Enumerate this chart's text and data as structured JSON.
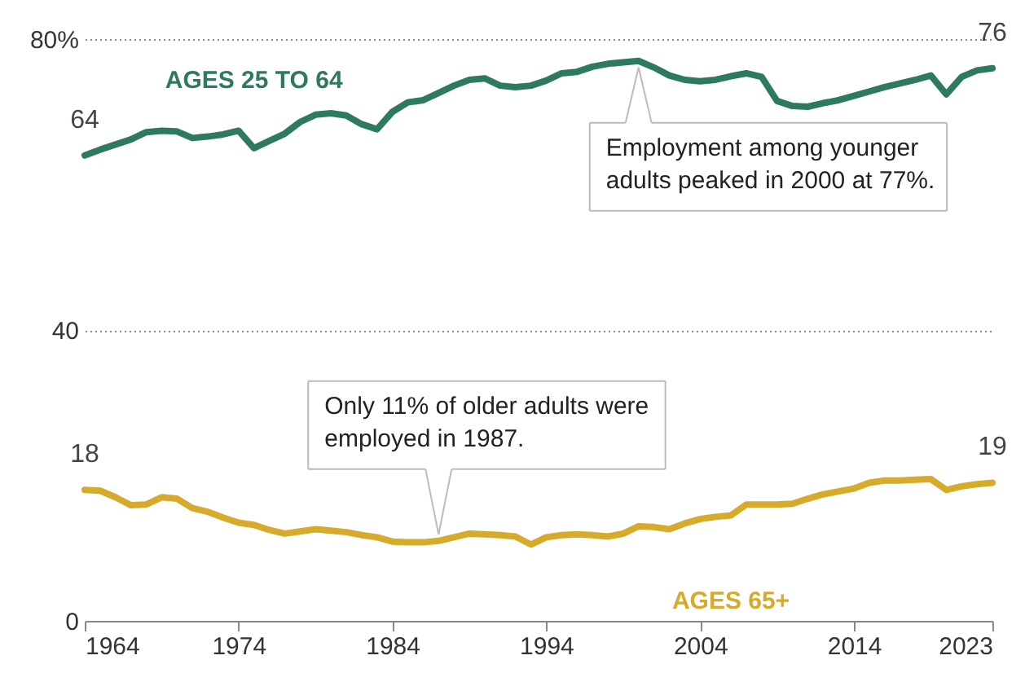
{
  "chart_data": {
    "type": "line",
    "x": [
      1964,
      1965,
      1966,
      1967,
      1968,
      1969,
      1970,
      1971,
      1972,
      1973,
      1974,
      1975,
      1976,
      1977,
      1978,
      1979,
      1980,
      1981,
      1982,
      1983,
      1984,
      1985,
      1986,
      1987,
      1988,
      1989,
      1990,
      1991,
      1992,
      1993,
      1994,
      1995,
      1996,
      1997,
      1998,
      1999,
      2000,
      2001,
      2002,
      2003,
      2004,
      2005,
      2006,
      2007,
      2008,
      2009,
      2010,
      2011,
      2012,
      2013,
      2014,
      2015,
      2016,
      2017,
      2018,
      2019,
      2020,
      2021,
      2022,
      2023
    ],
    "series": [
      {
        "name": "AGES 25 TO 64",
        "color": "#2e7a60",
        "values": [
          64,
          64.8,
          65.5,
          66.2,
          67.2,
          67.4,
          67.3,
          66.4,
          66.6,
          66.9,
          67.4,
          65,
          66,
          67,
          68.6,
          69.6,
          69.8,
          69.5,
          68.3,
          67.6,
          70,
          71.3,
          71.6,
          72.6,
          73.6,
          74.4,
          74.6,
          73.6,
          73.4,
          73.6,
          74.3,
          75.3,
          75.5,
          76.2,
          76.6,
          76.8,
          77,
          76.1,
          75,
          74.4,
          74.2,
          74.4,
          74.9,
          75.3,
          74.8,
          71.5,
          70.8,
          70.7,
          71.2,
          71.6,
          72.2,
          72.8,
          73.4,
          73.9,
          74.4,
          75,
          72.4,
          74.8,
          75.7,
          76
        ],
        "value_labels": [
          "64",
          null,
          null,
          null,
          null,
          null,
          null,
          null,
          null,
          null,
          null,
          null,
          null,
          null,
          null,
          null,
          null,
          null,
          null,
          null,
          null,
          null,
          null,
          null,
          null,
          null,
          null,
          null,
          null,
          null,
          null,
          null,
          null,
          null,
          null,
          null,
          null,
          null,
          null,
          null,
          null,
          null,
          null,
          null,
          null,
          null,
          null,
          null,
          null,
          null,
          null,
          null,
          null,
          null,
          null,
          null,
          null,
          null,
          null,
          "76"
        ]
      },
      {
        "name": "AGES 65+",
        "color": "#d6ab2c",
        "values": [
          18,
          17.9,
          17,
          15.9,
          16,
          17,
          16.8,
          15.5,
          15,
          14.2,
          13.5,
          13.2,
          12.5,
          12,
          12.3,
          12.6,
          12.4,
          12.2,
          11.8,
          11.5,
          10.9,
          10.8,
          10.8,
          11,
          11.5,
          12,
          11.9,
          11.8,
          11.6,
          10.5,
          11.5,
          11.8,
          11.9,
          11.8,
          11.6,
          12,
          13,
          12.9,
          12.6,
          13.4,
          14,
          14.3,
          14.5,
          16,
          16,
          16,
          16.1,
          16.8,
          17.4,
          17.8,
          18.2,
          19,
          19.3,
          19.3,
          19.4,
          19.5,
          18,
          18.5,
          18.8,
          19
        ],
        "value_labels": [
          "18",
          null,
          null,
          null,
          null,
          null,
          null,
          null,
          null,
          null,
          null,
          null,
          null,
          null,
          null,
          null,
          null,
          null,
          null,
          null,
          null,
          null,
          null,
          null,
          null,
          null,
          null,
          null,
          null,
          null,
          null,
          null,
          null,
          null,
          null,
          null,
          null,
          null,
          null,
          null,
          null,
          null,
          null,
          null,
          null,
          null,
          null,
          null,
          null,
          null,
          null,
          null,
          null,
          null,
          null,
          null,
          null,
          null,
          null,
          "19"
        ]
      }
    ],
    "xlim": [
      1964,
      2023
    ],
    "xticks": [
      1964,
      1974,
      1984,
      1994,
      2004,
      2014,
      2023
    ],
    "ylim": [
      0,
      80
    ],
    "yticks": [
      0,
      40,
      {
        "value": 80,
        "label": "80%"
      }
    ],
    "grid": "y",
    "line_style": "solid",
    "marker": "none",
    "annotations": [
      {
        "text": "Employment among younger adults peaked in 2000 at 77%.",
        "x": 2000,
        "y": 77
      },
      {
        "text": "Only 11% of older adults were employed in 1987.",
        "x": 1987,
        "y": 11
      }
    ]
  }
}
